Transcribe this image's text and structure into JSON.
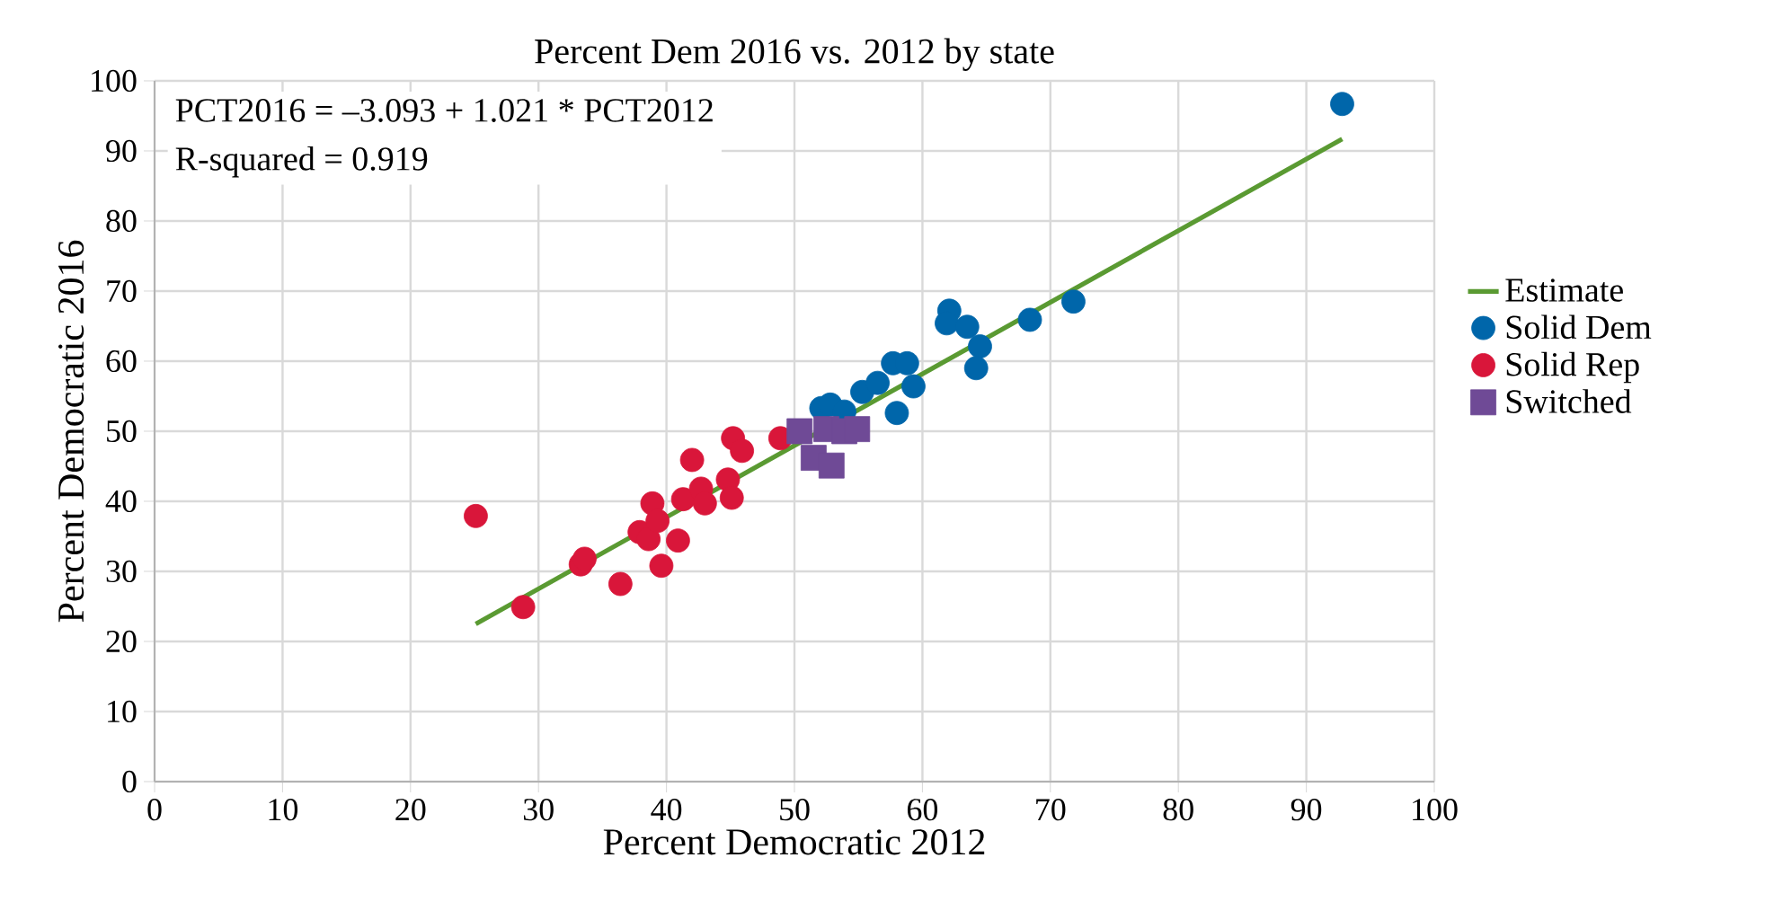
{
  "chart_data": {
    "type": "scatter",
    "title": "Percent Dem 2016 vs. 2012 by state",
    "xlabel": "Percent Democratic 2012",
    "ylabel": "Percent Democratic 2016",
    "annotations": [
      "PCT2016 = –3.093 + 1.021 * PCT2012",
      "R-squared = 0.919"
    ],
    "xlim": [
      0,
      100
    ],
    "ylim": [
      0,
      100
    ],
    "xticks": [
      0,
      10,
      20,
      30,
      40,
      50,
      60,
      70,
      80,
      90,
      100
    ],
    "yticks": [
      0,
      10,
      20,
      30,
      40,
      50,
      60,
      70,
      80,
      90,
      100
    ],
    "grid": true,
    "legend": "right",
    "series": [
      {
        "name": "Estimate",
        "type": "line",
        "color": "#5a9a32",
        "line_style": "solid",
        "marker": "none",
        "x": [
          25.1,
          92.8
        ],
        "values": [
          22.5,
          91.7
        ]
      },
      {
        "name": "Solid Dem",
        "color": "#0066aa",
        "marker": "circle",
        "x": [
          52.1,
          52.8,
          53.9,
          55.3,
          56.5,
          57.7,
          58.8,
          59.3,
          58.0,
          62.1,
          61.9,
          63.5,
          64.5,
          64.2,
          68.4,
          71.8,
          92.8
        ],
        "values": [
          53.3,
          53.8,
          52.8,
          55.6,
          56.9,
          59.7,
          59.7,
          56.4,
          52.6,
          67.2,
          65.4,
          64.9,
          62.1,
          59.0,
          65.9,
          68.5,
          96.7
        ]
      },
      {
        "name": "Solid Rep",
        "color": "#d9163a",
        "marker": "circle",
        "x": [
          25.1,
          28.8,
          33.3,
          33.6,
          36.4,
          37.9,
          38.6,
          38.9,
          39.6,
          39.3,
          40.9,
          41.3,
          42.0,
          42.7,
          43.0,
          44.8,
          45.1,
          45.2,
          45.9,
          48.9
        ],
        "values": [
          37.9,
          24.9,
          31.0,
          31.8,
          28.2,
          35.6,
          34.6,
          39.7,
          30.8,
          37.2,
          34.4,
          40.3,
          45.9,
          41.8,
          39.7,
          43.1,
          40.5,
          49.0,
          47.2,
          49.0
        ]
      },
      {
        "name": "Switched",
        "color": "#6f4a96",
        "marker": "square",
        "x": [
          50.4,
          52.5,
          53.9,
          54.9,
          51.5,
          52.9
        ],
        "values": [
          50.0,
          50.3,
          50.0,
          50.3,
          46.2,
          45.1
        ]
      }
    ]
  }
}
